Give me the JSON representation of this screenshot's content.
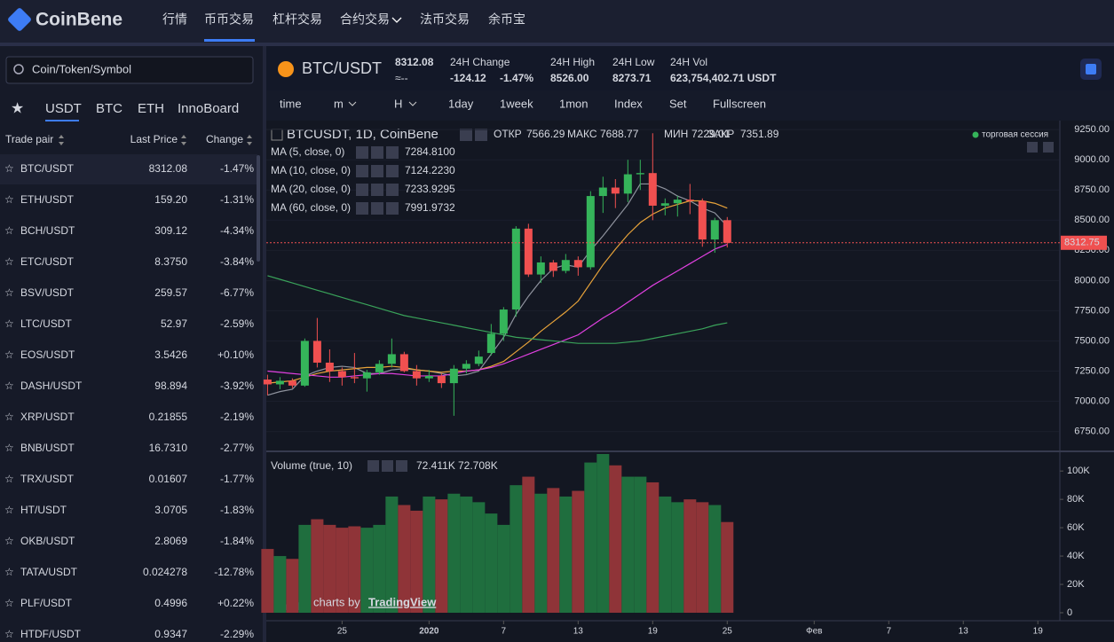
{
  "header": {
    "logo": "CoinBene",
    "nav": [
      "行情",
      "币币交易",
      "杠杆交易",
      "合约交易",
      "法币交易",
      "余币宝"
    ]
  },
  "sidebar": {
    "search_placeholder": "Coin/Token/Symbol",
    "tabs": [
      "USDT",
      "BTC",
      "ETH",
      "InnoBoard"
    ],
    "columns": [
      "Trade pair",
      "Last Price",
      "Change"
    ],
    "rows": [
      [
        "BTC/USDT",
        "8312.08",
        "-1.47%"
      ],
      [
        "ETH/USDT",
        "159.20",
        "-1.31%"
      ],
      [
        "BCH/USDT",
        "309.12",
        "-4.34%"
      ],
      [
        "ETC/USDT",
        "8.3750",
        "-3.84%"
      ],
      [
        "BSV/USDT",
        "259.57",
        "-6.77%"
      ],
      [
        "LTC/USDT",
        "52.97",
        "-2.59%"
      ],
      [
        "EOS/USDT",
        "3.5426",
        "+0.10%"
      ],
      [
        "DASH/USDT",
        "98.894",
        "-3.92%"
      ],
      [
        "XRP/USDT",
        "0.21855",
        "-2.19%"
      ],
      [
        "BNB/USDT",
        "16.7310",
        "-2.77%"
      ],
      [
        "TRX/USDT",
        "0.01607",
        "-1.77%"
      ],
      [
        "HT/USDT",
        "3.0705",
        "-1.83%"
      ],
      [
        "OKB/USDT",
        "2.8069",
        "-1.84%"
      ],
      [
        "TATA/USDT",
        "0.024278",
        "-12.78%"
      ],
      [
        "PLF/USDT",
        "0.4996",
        "+0.22%"
      ],
      [
        "HTDF/USDT",
        "0.9347",
        "-2.29%"
      ]
    ]
  },
  "ticker": {
    "symbol": "BTC/USDT",
    "last": "8312.08",
    "approx": "≈--",
    "change_label": "24H Change",
    "change": "-124.12",
    "change_pct": "-1.47%",
    "high_label": "24H High",
    "high": "8526.00",
    "low_label": "24H Low",
    "low": "8273.71",
    "vol_label": "24H Vol",
    "vol": "623,754,402.71 USDT"
  },
  "toolbar": [
    "time",
    "m",
    "H",
    "1day",
    "1week",
    "1mon",
    "Index",
    "Set",
    "Fullscreen"
  ],
  "chart_data": {
    "type": "candlestick",
    "title": "BTCUSDT, 1D, CoinBene",
    "ohlc_labels": [
      "ОТКР",
      "МАКС",
      "МИН",
      "ЗАКР"
    ],
    "ohlc_values": [
      "7566.29",
      "7688.77",
      "7229.01",
      "7351.89"
    ],
    "session_label": "торговая сессия",
    "up_color": "#35b45a",
    "down_color": "#f05050",
    "open": [
      7180,
      7140,
      7170,
      7130,
      7500,
      7320,
      7250,
      7200,
      7190,
      7240,
      7310,
      7390,
      7250,
      7190,
      7210,
      7150,
      7270,
      7310,
      7400,
      7560,
      7760,
      8430,
      8050,
      8150,
      8080,
      8170,
      8110,
      8700,
      8770,
      8720,
      8880,
      8890,
      8620,
      8640,
      8670,
      8660,
      8340,
      8500
    ],
    "high": [
      7220,
      7200,
      7190,
      7520,
      7690,
      7430,
      7280,
      7400,
      7260,
      7340,
      7520,
      7410,
      7300,
      7260,
      7230,
      7300,
      7340,
      7420,
      7640,
      7780,
      8450,
      8470,
      8200,
      8170,
      8220,
      8200,
      8740,
      8860,
      8840,
      9000,
      9000,
      9220,
      8680,
      8700,
      8800,
      8680,
      8520,
      8526
    ],
    "low": [
      7050,
      7100,
      7110,
      7120,
      7280,
      7160,
      7130,
      7150,
      7080,
      7220,
      7280,
      7240,
      7130,
      7160,
      7110,
      6880,
      7230,
      7290,
      7380,
      7500,
      7700,
      8030,
      7980,
      8030,
      8060,
      8040,
      8090,
      8560,
      8600,
      8650,
      8750,
      8500,
      8540,
      8530,
      8550,
      8280,
      8230,
      8274
    ],
    "close": [
      7140,
      7170,
      7130,
      7500,
      7320,
      7250,
      7200,
      7190,
      7240,
      7310,
      7390,
      7250,
      7190,
      7210,
      7150,
      7270,
      7310,
      7370,
      7560,
      7760,
      8430,
      8050,
      8150,
      8080,
      8170,
      8110,
      8700,
      8770,
      8720,
      8880,
      8890,
      8620,
      8640,
      8670,
      8660,
      8340,
      8500,
      8312
    ],
    "ma": [
      {
        "name": "MA (5, close, 0)",
        "color": "#8f939e",
        "legend_value": "7284.8100",
        "values": [
          7050,
          7080,
          7100,
          7210,
          7250,
          7280,
          7290,
          7280,
          7230,
          7230,
          7260,
          7270,
          7260,
          7250,
          7230,
          7210,
          7220,
          7250,
          7390,
          7530,
          7720,
          7870,
          8000,
          8100,
          8130,
          8110,
          8250,
          8370,
          8500,
          8630,
          8800,
          8800,
          8760,
          8700,
          8660,
          8600,
          8560,
          8450
        ]
      },
      {
        "name": "MA (10, close, 0)",
        "color": "#e8a33a",
        "legend_value": "7124.2230",
        "values": [
          7150,
          7160,
          7170,
          7200,
          7230,
          7250,
          7260,
          7270,
          7280,
          7280,
          7290,
          7280,
          7260,
          7250,
          7240,
          7250,
          7250,
          7260,
          7290,
          7330,
          7410,
          7490,
          7580,
          7660,
          7740,
          7830,
          7980,
          8130,
          8260,
          8380,
          8480,
          8550,
          8600,
          8630,
          8660,
          8660,
          8640,
          8600
        ]
      },
      {
        "name": "MA (20, close, 0)",
        "color": "#e040e0",
        "legend_value": "7233.9295",
        "values": [
          7250,
          7240,
          7230,
          7220,
          7210,
          7200,
          7200,
          7210,
          7220,
          7230,
          7230,
          7220,
          7210,
          7210,
          7210,
          7230,
          7250,
          7260,
          7280,
          7310,
          7350,
          7390,
          7430,
          7470,
          7510,
          7550,
          7620,
          7690,
          7750,
          7820,
          7890,
          7960,
          8020,
          8080,
          8140,
          8200,
          8260,
          8300
        ]
      },
      {
        "name": "MA (60, close, 0)",
        "color": "#3aa35a",
        "legend_value": "7991.9732",
        "values": [
          8040,
          8010,
          7980,
          7950,
          7920,
          7890,
          7860,
          7830,
          7800,
          7770,
          7740,
          7710,
          7690,
          7670,
          7650,
          7630,
          7610,
          7590,
          7570,
          7550,
          7530,
          7520,
          7510,
          7500,
          7490,
          7480,
          7480,
          7480,
          7480,
          7490,
          7500,
          7520,
          7540,
          7560,
          7580,
          7600,
          7630,
          7650
        ]
      }
    ],
    "last_price": {
      "value": 8312.75,
      "label": "8312.75"
    },
    "ylim": [
      6600,
      9310
    ],
    "yticks": [
      {
        "value": 9250,
        "label": "9250.00"
      },
      {
        "value": 9000,
        "label": "9000.00"
      },
      {
        "value": 8750,
        "label": "8750.00"
      },
      {
        "value": 8500,
        "label": "8500.00"
      },
      {
        "value": 8250,
        "label": "8250.00"
      },
      {
        "value": 8000,
        "label": "8000.00"
      },
      {
        "value": 7750,
        "label": "7750.00"
      },
      {
        "value": 7500,
        "label": "7500.00"
      },
      {
        "value": 7250,
        "label": "7250.00"
      },
      {
        "value": 7000,
        "label": "7000.00"
      },
      {
        "value": 6750,
        "label": "6750.00"
      }
    ],
    "xlim": [
      -0.1,
      63.7
    ],
    "xticks": [
      {
        "value": 6,
        "label": "25"
      },
      {
        "value": 13,
        "label": "2020"
      },
      {
        "value": 19,
        "label": "7"
      },
      {
        "value": 25,
        "label": "13"
      },
      {
        "value": 31,
        "label": "19"
      },
      {
        "value": 37,
        "label": "25"
      },
      {
        "value": 44,
        "label": "Фев"
      },
      {
        "value": 50,
        "label": "7"
      },
      {
        "value": 56,
        "label": "13"
      },
      {
        "value": 62,
        "label": "19"
      }
    ],
    "volume": {
      "legend": "Volume (true, 10)",
      "legend_values": [
        "72.411K",
        "72.708K"
      ],
      "up_color": "#1f6e3e",
      "down_color": "#8f3438",
      "values": [
        45,
        40,
        38,
        62,
        66,
        62,
        60,
        61,
        60,
        62,
        82,
        76,
        72,
        82,
        80,
        84,
        82,
        78,
        70,
        62,
        90,
        96,
        84,
        88,
        82,
        86,
        106,
        112,
        104,
        96,
        96,
        92,
        82,
        78,
        80,
        78,
        76,
        64
      ],
      "ylim": [
        -5,
        112
      ],
      "yticks": [
        {
          "value": 100,
          "label": "100K"
        },
        {
          "value": 80,
          "label": "80K"
        },
        {
          "value": 60,
          "label": "60K"
        },
        {
          "value": 40,
          "label": "40K"
        },
        {
          "value": 20,
          "label": "20K"
        },
        0
      ]
    },
    "attribution": [
      "charts by",
      "TradingView"
    ]
  }
}
